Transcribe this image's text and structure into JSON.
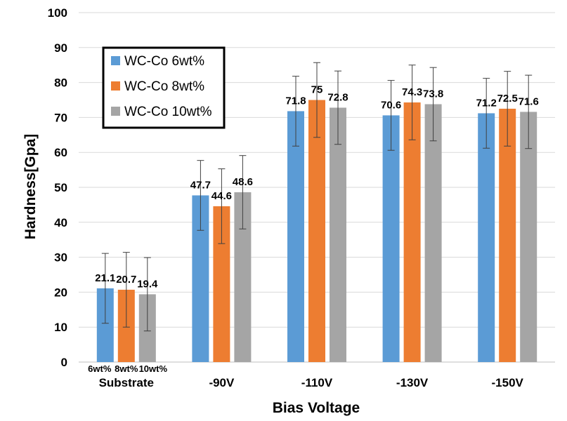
{
  "chart_data": {
    "type": "bar",
    "categories": [
      "Substrate",
      "-90V",
      "-110V",
      "-130V",
      "-150V"
    ],
    "series": [
      {
        "name": "WC-Co 6wt%",
        "color": "#5B9BD5",
        "values": [
          21.1,
          47.7,
          71.8,
          70.6,
          71.2
        ],
        "error": [
          10,
          10,
          10,
          10,
          10
        ]
      },
      {
        "name": "WC-Co 8wt%",
        "color": "#ED7D31",
        "values": [
          20.7,
          44.6,
          75,
          74.3,
          72.5
        ],
        "error": [
          10.7,
          10.7,
          10.7,
          10.7,
          10.7
        ]
      },
      {
        "name": "WC-Co 10wt%",
        "color": "#A5A5A5",
        "values": [
          19.4,
          48.6,
          72.8,
          73.8,
          71.6
        ],
        "error": [
          10.5,
          10.5,
          10.5,
          10.5,
          10.5
        ]
      }
    ],
    "data_labels": [
      [
        "21.1",
        "47.7",
        "71.8",
        "70.6",
        "71.2"
      ],
      [
        "20.7",
        "44.6",
        "75",
        "74.3",
        "72.5"
      ],
      [
        "19.4",
        "48.6",
        "72.8",
        "73.8",
        "71.6"
      ]
    ],
    "sub_labels": [
      "6wt%",
      "8wt%",
      "10wt%"
    ],
    "title": "",
    "xlabel": "Bias Voltage",
    "ylabel": "Hardness[Gpa]",
    "ylim": [
      0,
      100
    ],
    "yticks": [
      "0",
      "10",
      "20",
      "30",
      "40",
      "50",
      "60",
      "70",
      "80",
      "90",
      "100"
    ],
    "grid": true,
    "legend_position": "top-left"
  }
}
